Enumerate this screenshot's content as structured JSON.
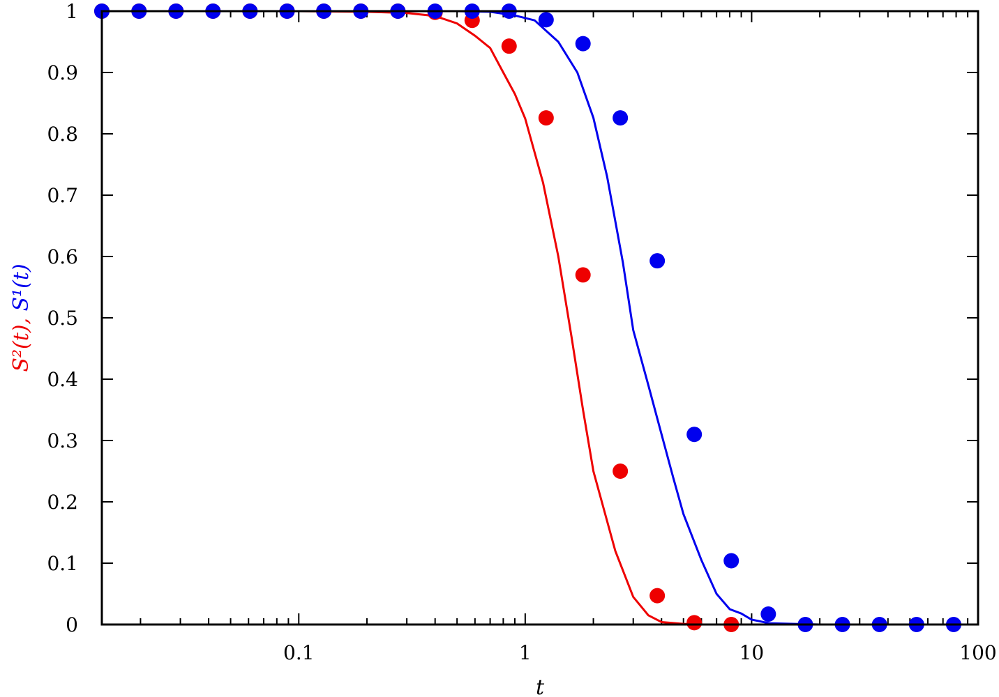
{
  "chart_data": {
    "type": "line",
    "x_scale": "log",
    "xlim": [
      0.0135,
      100
    ],
    "ylim": [
      0,
      1
    ],
    "xlabel": "t",
    "ylabel_parts": [
      {
        "text": "S²(t)",
        "color": "#ee0000"
      },
      {
        "text": ", ",
        "color": "#ee0000"
      },
      {
        "text": "S¹(t)",
        "color": "#0000ee"
      }
    ],
    "x_ticks": [
      {
        "value": 0.1,
        "label": "0.1"
      },
      {
        "value": 1,
        "label": "1"
      },
      {
        "value": 10,
        "label": "10"
      },
      {
        "value": 100,
        "label": "100"
      }
    ],
    "y_ticks": [
      {
        "value": 0,
        "label": "0"
      },
      {
        "value": 0.1,
        "label": "0.1"
      },
      {
        "value": 0.2,
        "label": "0.2"
      },
      {
        "value": 0.3,
        "label": "0.3"
      },
      {
        "value": 0.4,
        "label": "0.4"
      },
      {
        "value": 0.5,
        "label": "0.5"
      },
      {
        "value": 0.6,
        "label": "0.6"
      },
      {
        "value": 0.7,
        "label": "0.7"
      },
      {
        "value": 0.8,
        "label": "0.8"
      },
      {
        "value": 0.9,
        "label": "0.9"
      },
      {
        "value": 1,
        "label": "1"
      }
    ],
    "series": [
      {
        "name": "S2",
        "color": "#ee0000",
        "line": {
          "x": [
            0.0135,
            0.05,
            0.1,
            0.2,
            0.3,
            0.4,
            0.5,
            0.6,
            0.7,
            0.8,
            0.9,
            1.0,
            1.2,
            1.4,
            1.6,
            1.8,
            2.0,
            2.5,
            3.0,
            3.5,
            4.0,
            5.0,
            6.0,
            8.0,
            9.0
          ],
          "y": [
            1,
            1,
            1,
            0.999,
            0.997,
            0.992,
            0.98,
            0.96,
            0.94,
            0.9,
            0.865,
            0.825,
            0.72,
            0.6,
            0.47,
            0.35,
            0.25,
            0.12,
            0.045,
            0.015,
            0.004,
            0.001,
            0.0,
            0.0,
            0.0
          ]
        },
        "points": {
          "x": [
            0.0135,
            0.0197,
            0.0287,
            0.0418,
            0.0609,
            0.0888,
            0.129,
            0.188,
            0.274,
            0.4,
            0.583,
            0.849,
            1.237,
            1.8,
            2.63,
            3.83,
            5.58,
            8.13
          ],
          "y": [
            1,
            1,
            1,
            1,
            1,
            1,
            1,
            1,
            1,
            0.998,
            0.985,
            0.943,
            0.826,
            0.57,
            0.25,
            0.047,
            0.003,
            0.0
          ]
        }
      },
      {
        "name": "S1",
        "color": "#0000ee",
        "line": {
          "x": [
            0.0135,
            0.1,
            0.5,
            0.7,
            0.9,
            1.1,
            1.4,
            1.7,
            2.0,
            2.3,
            2.7,
            3.0,
            3.5,
            4.0,
            4.5,
            5.0,
            6.0,
            7.0,
            8.0,
            9.0,
            10.0,
            12.0,
            20.0,
            100.0
          ],
          "y": [
            1,
            1,
            1,
            0.999,
            0.993,
            0.985,
            0.95,
            0.9,
            0.826,
            0.73,
            0.59,
            0.48,
            0.39,
            0.31,
            0.24,
            0.18,
            0.105,
            0.05,
            0.025,
            0.018,
            0.008,
            0.002,
            0.0,
            0.0
          ]
        },
        "points": {
          "x": [
            0.0135,
            0.0197,
            0.0287,
            0.0418,
            0.0609,
            0.0888,
            0.129,
            0.188,
            0.274,
            0.4,
            0.583,
            0.849,
            1.237,
            1.8,
            2.63,
            3.83,
            5.58,
            8.13,
            11.85,
            17.27,
            25.18,
            36.7,
            53.5,
            78.0
          ],
          "y": [
            1,
            1,
            1,
            1,
            1,
            1,
            1,
            1,
            1,
            1,
            1,
            1,
            0.986,
            0.947,
            0.826,
            0.593,
            0.31,
            0.104,
            0.017,
            0.0,
            0.0,
            0.0,
            0.0,
            0.0
          ]
        }
      }
    ]
  }
}
